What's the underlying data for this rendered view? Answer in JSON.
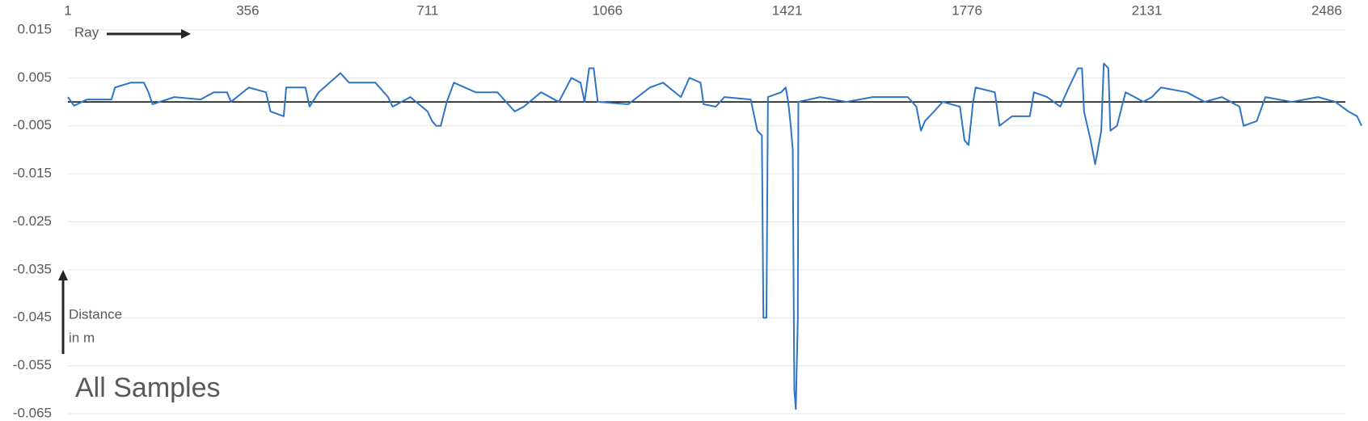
{
  "chart_data": {
    "type": "line",
    "annotations": {
      "x_arrow": "Ray",
      "y_arrow": [
        "Distance",
        "in m"
      ],
      "panel": "All Samples"
    },
    "x": [
      1,
      13,
      39,
      87,
      94,
      125,
      151,
      160,
      168,
      211,
      263,
      289,
      315,
      323,
      358,
      392,
      401,
      427,
      432,
      470,
      478,
      496,
      539,
      556,
      608,
      633,
      642,
      677,
      711,
      720,
      728,
      737,
      749,
      763,
      806,
      849,
      883,
      901,
      935,
      970,
      995,
      1013,
      1021,
      1030,
      1039,
      1047,
      1107,
      1150,
      1176,
      1211,
      1228,
      1250,
      1256,
      1280,
      1297,
      1349,
      1362,
      1371,
      1374,
      1380,
      1383,
      1409,
      1418,
      1423,
      1428,
      1432,
      1435,
      1438,
      1442,
      1443,
      1486,
      1538,
      1590,
      1659,
      1676,
      1685,
      1693,
      1711,
      1728,
      1762,
      1771,
      1779,
      1788,
      1793,
      1831,
      1840,
      1865,
      1900,
      1908,
      1934,
      1960,
      1977,
      1995,
      2003,
      2007,
      2020,
      2029,
      2041,
      2046,
      2055,
      2059,
      2072,
      2089,
      2107,
      2124,
      2141,
      2159,
      2210,
      2245,
      2279,
      2314,
      2322,
      2348,
      2365,
      2417,
      2469,
      2503,
      2529,
      2546,
      2555
    ],
    "series": [
      {
        "color": "#2e75c6",
        "values": [
          0.001,
          -0.0008,
          0.0005,
          0.0005,
          0.003,
          0.004,
          0.004,
          0.002,
          -0.0005,
          0.001,
          0.0005,
          0.002,
          0.002,
          0.0,
          0.003,
          0.002,
          -0.002,
          -0.003,
          0.003,
          0.003,
          -0.001,
          0.002,
          0.006,
          0.004,
          0.004,
          0.001,
          -0.001,
          0.001,
          -0.002,
          -0.004,
          -0.005,
          -0.005,
          0.0,
          0.004,
          0.002,
          0.002,
          -0.002,
          -0.001,
          0.002,
          0.0,
          0.005,
          0.004,
          0.0,
          0.007,
          0.007,
          0.0,
          -0.0005,
          0.003,
          0.004,
          0.001,
          0.005,
          0.004,
          -0.0005,
          -0.001,
          0.001,
          0.0005,
          -0.006,
          -0.007,
          -0.045,
          -0.045,
          0.001,
          0.002,
          0.003,
          0.0,
          -0.005,
          -0.01,
          -0.06,
          -0.064,
          -0.045,
          0.0,
          0.001,
          0.0,
          0.001,
          0.001,
          -0.001,
          -0.006,
          -0.004,
          -0.002,
          0.0,
          -0.001,
          -0.008,
          -0.009,
          0.0,
          0.003,
          0.002,
          -0.005,
          -0.003,
          -0.003,
          0.002,
          0.001,
          -0.001,
          0.003,
          0.007,
          0.007,
          -0.002,
          -0.008,
          -0.013,
          -0.006,
          0.008,
          0.007,
          -0.006,
          -0.005,
          0.002,
          0.001,
          0.0,
          0.001,
          0.003,
          0.002,
          0.0,
          0.001,
          -0.001,
          -0.005,
          -0.004,
          0.001,
          0.0,
          0.001,
          0.0,
          -0.002,
          -0.003,
          -0.005
        ]
      }
    ],
    "xlim": [
      1,
      2558
    ],
    "xticks": [
      1,
      356,
      711,
      1066,
      1421,
      1776,
      2131,
      2486
    ],
    "ylim": [
      -0.065,
      0.015
    ],
    "yticks": [
      0.015,
      0.005,
      -0.005,
      -0.015,
      -0.025,
      -0.035,
      -0.045,
      -0.055,
      -0.065
    ],
    "grid": true
  }
}
